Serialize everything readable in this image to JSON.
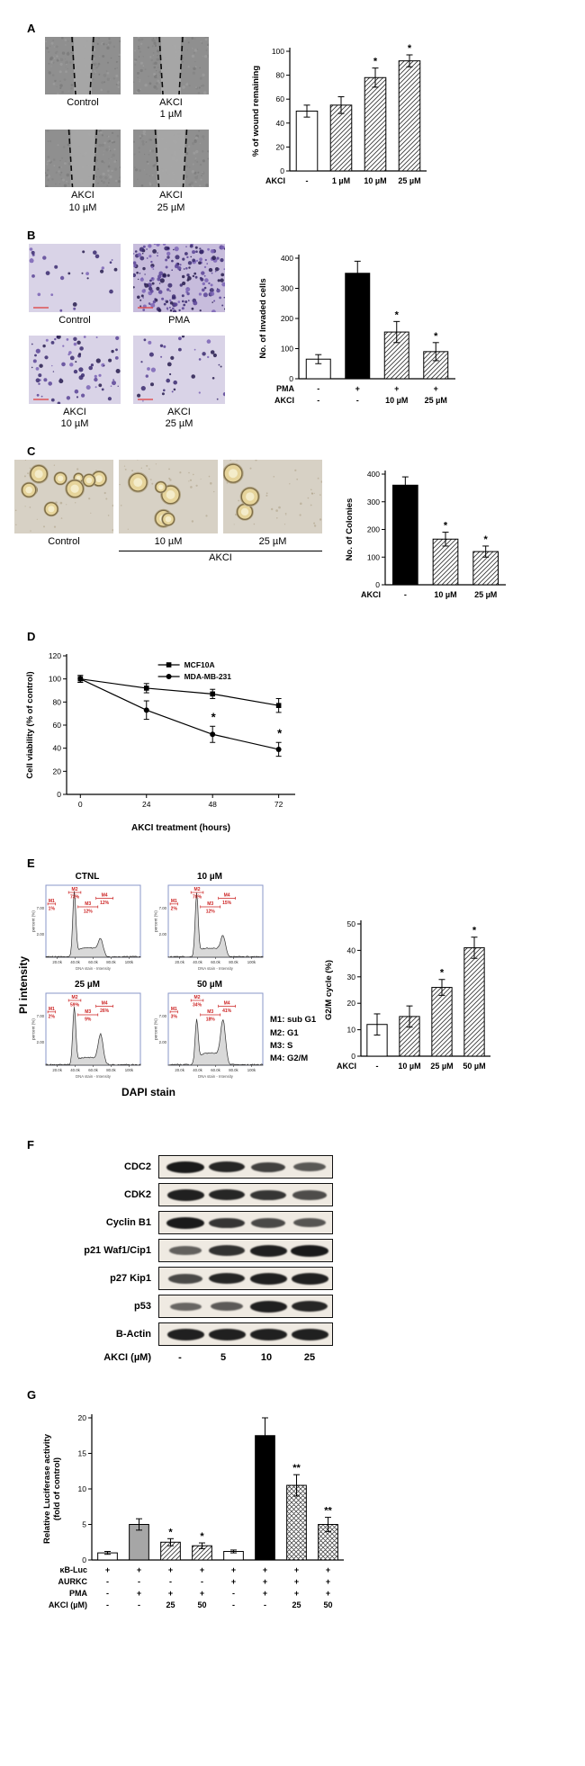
{
  "panels": {
    "a": "A",
    "b": "B",
    "c": "C",
    "d": "D",
    "e": "E",
    "f": "F",
    "g": "G"
  },
  "panel_a": {
    "images": [
      {
        "label": "Control",
        "gap": 20
      },
      {
        "label": "AKCI\n1 µM",
        "gap": 22
      },
      {
        "label": "AKCI\n10 µM",
        "gap": 27
      },
      {
        "label": "AKCI\n25 µM",
        "gap": 31
      }
    ]
  },
  "panel_b": {
    "images": [
      {
        "label": "Control",
        "density": 28,
        "dark": false
      },
      {
        "label": "PMA",
        "density": 210,
        "dark": true
      },
      {
        "label": "AKCI\n10 µM",
        "density": 75,
        "dark": false
      },
      {
        "label": "AKCI\n25 µM",
        "density": 40,
        "dark": false
      }
    ]
  },
  "panel_c": {
    "images": [
      {
        "label": "Control",
        "colonies": 9
      },
      {
        "label": "10 µM",
        "colonies": 5
      },
      {
        "label": "25 µM",
        "colonies": 3
      }
    ],
    "group_label": "AKCI"
  },
  "panel_e": {
    "ylabel": "PI intensity",
    "xlabel": "DAPI stain",
    "x_axis_note": "DNA stain - Intensity",
    "y_axis_note": "percent (%)",
    "xticks": [
      "20.0k",
      "40.0k",
      "60.0k",
      "80.0k",
      "100k"
    ],
    "yticks": [
      "2.00",
      "7.00"
    ],
    "legend": [
      "M1: sub G1",
      "M2: G1",
      "M3: S",
      "M4: G2/M"
    ],
    "plots": [
      {
        "title": "CTNL",
        "markers": {
          "M1": "1%",
          "M2": "73%",
          "M3": "12%",
          "M4": "12%"
        }
      },
      {
        "title": "10 µM",
        "markers": {
          "M1": "2%",
          "M2": "70%",
          "M3": "12%",
          "M4": "15%"
        }
      },
      {
        "title": "25 µM",
        "markers": {
          "M1": "2%",
          "M2": "59%",
          "M3": "9%",
          "M4": "26%"
        }
      },
      {
        "title": "50 µM",
        "markers": {
          "M1": "3%",
          "M2": "34%",
          "M3": "18%",
          "M4": "41%"
        }
      }
    ]
  },
  "panel_f": {
    "rows": [
      {
        "label": "CDC2",
        "bands": [
          0.95,
          0.85,
          0.62,
          0.42
        ]
      },
      {
        "label": "CDK2",
        "bands": [
          0.9,
          0.85,
          0.72,
          0.52
        ]
      },
      {
        "label": "Cyclin B1",
        "bands": [
          0.95,
          0.72,
          0.55,
          0.45
        ]
      },
      {
        "label": "p21 Waf1/Cip1",
        "bands": [
          0.35,
          0.75,
          0.9,
          0.95
        ]
      },
      {
        "label": "p27 Kip1",
        "bands": [
          0.55,
          0.85,
          0.9,
          0.9
        ]
      },
      {
        "label": "p53",
        "bands": [
          0.3,
          0.4,
          0.9,
          0.85
        ]
      },
      {
        "label": "B-Actin",
        "bands": [
          0.9,
          0.9,
          0.9,
          0.9
        ]
      }
    ],
    "dose_row": {
      "name": "AKCI (µM)",
      "values": [
        "-",
        "5",
        "10",
        "25"
      ]
    }
  },
  "chart_data": [
    {
      "id": "wound_bar",
      "panel": "A",
      "type": "bar",
      "ylabel": "% of wound remaining",
      "ylim": [
        0,
        100
      ],
      "yticks": [
        0,
        20,
        40,
        60,
        80,
        100
      ],
      "values": [
        50,
        55,
        78,
        92
      ],
      "errors": [
        5,
        7,
        8,
        5
      ],
      "bar_styles": [
        "white",
        "hatch",
        "hatch",
        "hatch"
      ],
      "significance": [
        "",
        "",
        "*",
        "*"
      ],
      "label_rows": [
        {
          "name": "AKCI",
          "values": [
            "-",
            "1 µM",
            "10 µM",
            "25 µM"
          ]
        }
      ]
    },
    {
      "id": "invasion_bar",
      "panel": "B",
      "type": "bar",
      "ylabel": "No. of Invaded cells",
      "ylim": [
        0,
        400
      ],
      "yticks": [
        0,
        100,
        200,
        300,
        400
      ],
      "values": [
        65,
        350,
        155,
        90
      ],
      "errors": [
        15,
        40,
        35,
        30
      ],
      "bar_styles": [
        "white",
        "black",
        "hatch",
        "hatch"
      ],
      "significance": [
        "",
        "",
        "*",
        "*"
      ],
      "label_rows": [
        {
          "name": "PMA",
          "values": [
            "-",
            "+",
            "+",
            "+"
          ]
        },
        {
          "name": "AKCI",
          "values": [
            "-",
            "-",
            "10 µM",
            "25 µM"
          ]
        }
      ]
    },
    {
      "id": "colony_bar",
      "panel": "C",
      "type": "bar",
      "ylabel": "No. of Colonies",
      "ylim": [
        0,
        400
      ],
      "yticks": [
        0,
        100,
        200,
        300,
        400
      ],
      "values": [
        360,
        165,
        120
      ],
      "errors": [
        30,
        25,
        20
      ],
      "bar_styles": [
        "black",
        "hatch",
        "hatch"
      ],
      "significance": [
        "",
        "*",
        "*"
      ],
      "label_rows": [
        {
          "name": "AKCI",
          "values": [
            "-",
            "10 µM",
            "25 µM"
          ]
        }
      ]
    },
    {
      "id": "viability_line",
      "panel": "D",
      "type": "line",
      "xlabel": "AKCI treatment  (hours)",
      "ylabel": "Cell viability (% of control)",
      "x": [
        0,
        24,
        48,
        72
      ],
      "ylim": [
        0,
        120
      ],
      "yticks": [
        0,
        20,
        40,
        60,
        80,
        100,
        120
      ],
      "series": [
        {
          "name": "MCF10A",
          "marker": "square",
          "values": [
            100,
            92,
            87,
            77
          ],
          "errors": [
            3,
            4,
            4,
            6
          ]
        },
        {
          "name": "MDA-MB-231",
          "marker": "circle",
          "values": [
            100,
            73,
            52,
            39
          ],
          "errors": [
            3,
            8,
            7,
            6
          ]
        }
      ],
      "significance_x": [
        48,
        72
      ]
    },
    {
      "id": "g2m_bar",
      "panel": "E",
      "type": "bar",
      "ylabel": "G2/M cycle (%)",
      "ylim": [
        0,
        50
      ],
      "yticks": [
        0,
        10,
        20,
        30,
        40,
        50
      ],
      "values": [
        12,
        15,
        26,
        41
      ],
      "errors": [
        4,
        4,
        3,
        4
      ],
      "bar_styles": [
        "white",
        "hatch",
        "hatch",
        "hatch"
      ],
      "significance": [
        "",
        "",
        "*",
        "*"
      ],
      "label_rows": [
        {
          "name": "AKCI",
          "values": [
            "-",
            "10 µM",
            "25 µM",
            "50 µM"
          ]
        }
      ]
    },
    {
      "id": "luciferase_bar",
      "panel": "G",
      "type": "bar",
      "ylabel": "Relative Luciferase activity\n(fold of control)",
      "ylim": [
        0,
        20
      ],
      "yticks": [
        0,
        5,
        10,
        15,
        20
      ],
      "values": [
        1,
        5,
        2.5,
        2,
        1.2,
        17.5,
        10.5,
        5
      ],
      "errors": [
        0.2,
        0.8,
        0.5,
        0.4,
        0.2,
        2.5,
        1.5,
        1
      ],
      "bar_styles": [
        "white",
        "gray",
        "hatch",
        "hatch",
        "white",
        "black",
        "cross",
        "cross"
      ],
      "significance": [
        "",
        "",
        "*",
        "*",
        "",
        "",
        "**",
        "**"
      ],
      "label_rows": [
        {
          "name": "κB-Luc",
          "values": [
            "+",
            "+",
            "+",
            "+",
            "+",
            "+",
            "+",
            "+"
          ]
        },
        {
          "name": "AURKC",
          "values": [
            "-",
            "-",
            "-",
            "-",
            "+",
            "+",
            "+",
            "+"
          ]
        },
        {
          "name": "PMA",
          "values": [
            "-",
            "+",
            "+",
            "+",
            "-",
            "+",
            "+",
            "+"
          ]
        },
        {
          "name": "AKCI (µM)",
          "values": [
            "-",
            "-",
            "25",
            "50",
            "-",
            "-",
            "25",
            "50"
          ]
        }
      ]
    }
  ]
}
